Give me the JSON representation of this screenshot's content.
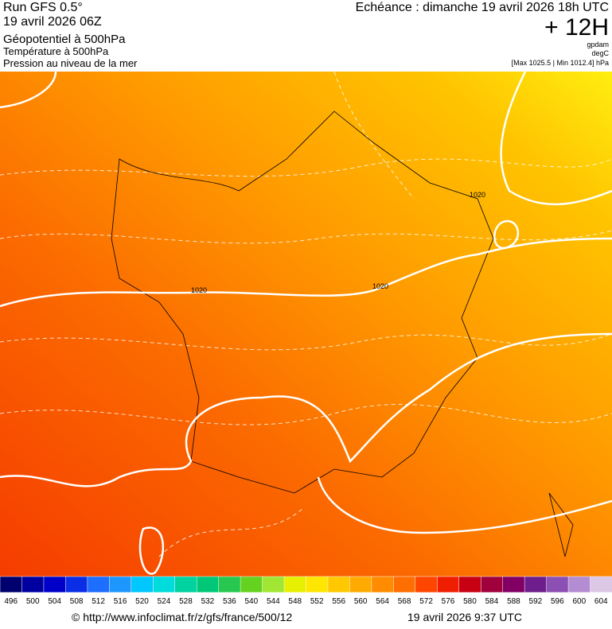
{
  "header": {
    "left": [
      "Run GFS 0.5°",
      "19 avril 2026 06Z",
      "Géopotentiel à 500hPa",
      "Température à 500hPa",
      "Pression au niveau de la mer"
    ],
    "echeance": "Echéance : dimanche 19 avril 2026 18h UTC",
    "offset": "+ 12H",
    "units": [
      "gpdam",
      "degC",
      "[Max 1025.5 | Min 1012.4] hPa"
    ]
  },
  "map": {
    "contour_labels": [
      "1020",
      "1020",
      "1020"
    ]
  },
  "scale": {
    "labels": [
      496,
      500,
      504,
      508,
      512,
      516,
      520,
      524,
      528,
      532,
      536,
      540,
      544,
      548,
      552,
      556,
      560,
      564,
      568,
      572,
      576,
      580,
      584,
      588,
      592,
      596,
      600,
      604
    ],
    "colors": [
      "#00006e",
      "#0000a0",
      "#0000c8",
      "#0a2ee6",
      "#1e6eff",
      "#1e96ff",
      "#00c8ff",
      "#00dcdc",
      "#00d2a0",
      "#00c878",
      "#28c850",
      "#64d21e",
      "#a0e632",
      "#e6f000",
      "#ffe600",
      "#ffc800",
      "#ffaa00",
      "#ff8c00",
      "#ff6e00",
      "#ff4600",
      "#f01e00",
      "#c80014",
      "#a0003c",
      "#820064",
      "#6e1e8c",
      "#8c50b4",
      "#b48cd2",
      "#dcc8e6"
    ]
  },
  "footer": {
    "source": "© http://www.infoclimat.fr/z/gfs/france/500/12",
    "date": "19 avril 2026  9:37 UTC"
  }
}
